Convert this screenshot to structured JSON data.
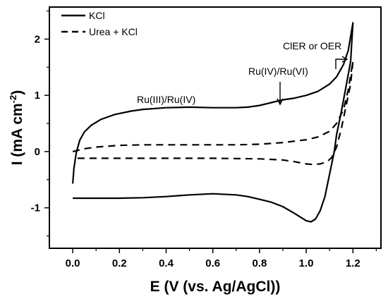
{
  "chart_data": {
    "type": "line",
    "xlabel": "E (V (vs. Ag/AgCl))",
    "ylabel_main": "I (mA cm",
    "ylabel_sup": "-2",
    "ylabel_close": ")",
    "xlim": [
      -0.1,
      1.32
    ],
    "ylim": [
      -1.72,
      2.57
    ],
    "xticks": [
      {
        "value": 0.0,
        "label": "0.0"
      },
      {
        "value": 0.2,
        "label": "0.2"
      },
      {
        "value": 0.4,
        "label": "0.4"
      },
      {
        "value": 0.6,
        "label": "0.6"
      },
      {
        "value": 0.8,
        "label": "0.8"
      },
      {
        "value": 1.0,
        "label": "1.0"
      },
      {
        "value": 1.2,
        "label": "1.2"
      }
    ],
    "yticks": [
      {
        "value": -1,
        "label": "-1"
      },
      {
        "value": 0,
        "label": "0"
      },
      {
        "value": 1,
        "label": "1"
      },
      {
        "value": 2,
        "label": "2"
      }
    ],
    "grid": false,
    "legend_position": "top-left",
    "series": [
      {
        "name": "KCl",
        "style": "solid",
        "points": [
          [
            0.0,
            -0.57
          ],
          [
            0.005,
            -0.3
          ],
          [
            0.015,
            -0.02
          ],
          [
            0.03,
            0.2
          ],
          [
            0.05,
            0.35
          ],
          [
            0.08,
            0.47
          ],
          [
            0.12,
            0.57
          ],
          [
            0.18,
            0.66
          ],
          [
            0.25,
            0.72
          ],
          [
            0.3,
            0.75
          ],
          [
            0.4,
            0.78
          ],
          [
            0.5,
            0.79
          ],
          [
            0.6,
            0.78
          ],
          [
            0.7,
            0.78
          ],
          [
            0.75,
            0.79
          ],
          [
            0.8,
            0.82
          ],
          [
            0.85,
            0.87
          ],
          [
            0.9,
            0.92
          ],
          [
            0.95,
            0.95
          ],
          [
            1.0,
            1.0
          ],
          [
            1.05,
            1.07
          ],
          [
            1.1,
            1.2
          ],
          [
            1.13,
            1.33
          ],
          [
            1.16,
            1.55
          ],
          [
            1.18,
            1.8
          ],
          [
            1.2,
            2.29
          ],
          [
            1.19,
            1.6
          ],
          [
            1.17,
            1.15
          ],
          [
            1.15,
            0.7
          ],
          [
            1.13,
            0.3
          ],
          [
            1.12,
            0.0
          ],
          [
            1.1,
            -0.4
          ],
          [
            1.08,
            -0.8
          ],
          [
            1.06,
            -1.05
          ],
          [
            1.04,
            -1.2
          ],
          [
            1.02,
            -1.25
          ],
          [
            1.0,
            -1.23
          ],
          [
            0.95,
            -1.1
          ],
          [
            0.9,
            -0.98
          ],
          [
            0.85,
            -0.9
          ],
          [
            0.8,
            -0.85
          ],
          [
            0.75,
            -0.8
          ],
          [
            0.7,
            -0.77
          ],
          [
            0.6,
            -0.75
          ],
          [
            0.5,
            -0.77
          ],
          [
            0.4,
            -0.8
          ],
          [
            0.3,
            -0.82
          ],
          [
            0.2,
            -0.83
          ],
          [
            0.1,
            -0.83
          ],
          [
            0.0,
            -0.83
          ]
        ]
      },
      {
        "name": "Urea + KCl",
        "style": "dashed",
        "points": [
          [
            0.0,
            0.0
          ],
          [
            0.05,
            0.05
          ],
          [
            0.1,
            0.08
          ],
          [
            0.2,
            0.11
          ],
          [
            0.3,
            0.12
          ],
          [
            0.5,
            0.12
          ],
          [
            0.7,
            0.12
          ],
          [
            0.8,
            0.13
          ],
          [
            0.9,
            0.16
          ],
          [
            1.0,
            0.21
          ],
          [
            1.05,
            0.26
          ],
          [
            1.1,
            0.36
          ],
          [
            1.13,
            0.5
          ],
          [
            1.16,
            0.75
          ],
          [
            1.18,
            1.1
          ],
          [
            1.2,
            1.61
          ],
          [
            1.19,
            1.2
          ],
          [
            1.17,
            0.8
          ],
          [
            1.15,
            0.4
          ],
          [
            1.13,
            0.08
          ],
          [
            1.11,
            -0.1
          ],
          [
            1.09,
            -0.18
          ],
          [
            1.06,
            -0.22
          ],
          [
            1.03,
            -0.23
          ],
          [
            1.0,
            -0.22
          ],
          [
            0.95,
            -0.18
          ],
          [
            0.9,
            -0.15
          ],
          [
            0.8,
            -0.13
          ],
          [
            0.6,
            -0.12
          ],
          [
            0.4,
            -0.12
          ],
          [
            0.2,
            -0.12
          ],
          [
            0.0,
            -0.12
          ]
        ]
      }
    ],
    "annotations": {
      "ru34": {
        "text": "Ru(III)/Ru(IV)"
      },
      "ru46": {
        "text": "Ru(IV)/Ru(VI)"
      },
      "cier": {
        "text": "ClER or OER"
      }
    }
  }
}
